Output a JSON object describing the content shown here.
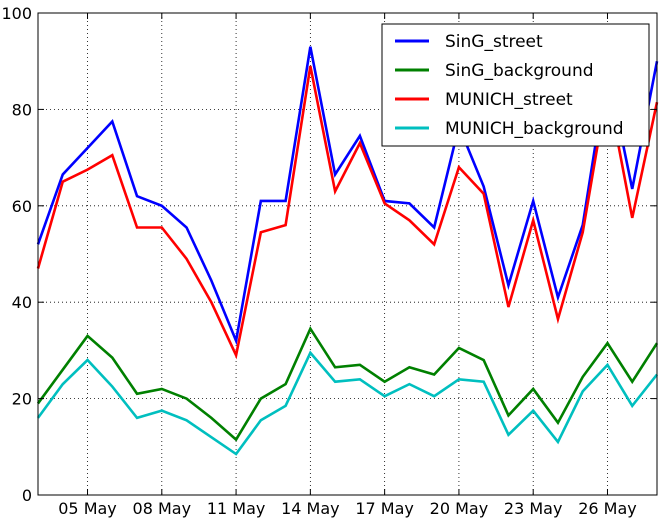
{
  "chart_data": {
    "type": "line",
    "title": "",
    "xlabel": "",
    "ylabel": "",
    "x_start": "03 May",
    "x": [
      "03 May",
      "04 May",
      "05 May",
      "06 May",
      "07 May",
      "08 May",
      "09 May",
      "10 May",
      "11 May",
      "12 May",
      "13 May",
      "14 May",
      "15 May",
      "16 May",
      "17 May",
      "18 May",
      "19 May",
      "20 May",
      "21 May",
      "22 May",
      "23 May",
      "24 May",
      "25 May",
      "26 May",
      "27 May",
      "28 May"
    ],
    "x_range": [
      "03 May",
      "28 May"
    ],
    "x_ticks": [
      "05 May",
      "08 May",
      "11 May",
      "14 May",
      "17 May",
      "20 May",
      "23 May",
      "26 May"
    ],
    "ylim": [
      0,
      100
    ],
    "y_ticks": [
      0,
      20,
      40,
      60,
      80,
      100
    ],
    "grid": true,
    "legend_position": "top-right",
    "series": [
      {
        "name": "SinG_street",
        "color": "#0000ff",
        "values": [
          52,
          66.5,
          72,
          77.5,
          62,
          60,
          55.5,
          44.5,
          32,
          61,
          61,
          93,
          66.5,
          74.5,
          61,
          60.5,
          55.5,
          76.5,
          64,
          43.5,
          61,
          41,
          56,
          88.5,
          63.5,
          90
        ]
      },
      {
        "name": "SinG_background",
        "color": "#008000",
        "values": [
          19,
          26,
          33,
          28.5,
          21,
          22,
          20,
          16,
          11.5,
          20,
          23,
          34.5,
          26.5,
          27,
          23.5,
          26.5,
          25,
          30.5,
          28,
          16.5,
          22,
          15,
          24.5,
          31.5,
          23.5,
          31.5
        ]
      },
      {
        "name": "MUNICH_street",
        "color": "#ff0000",
        "values": [
          47,
          65,
          67.5,
          70.5,
          55.5,
          55.5,
          49,
          40,
          29,
          54.5,
          56,
          89,
          63,
          73,
          60.5,
          57,
          52,
          68,
          62.5,
          39,
          57,
          36.5,
          54.5,
          84.5,
          57.5,
          81.5
        ]
      },
      {
        "name": "MUNICH_background",
        "color": "#00bfbf",
        "values": [
          16,
          23,
          28,
          22.5,
          16,
          17.5,
          15.5,
          12,
          8.5,
          15.5,
          18.5,
          29.5,
          23.5,
          24,
          20.5,
          23,
          20.5,
          24,
          23.5,
          12.5,
          17.5,
          11,
          21.5,
          27,
          18.5,
          25
        ]
      }
    ]
  }
}
